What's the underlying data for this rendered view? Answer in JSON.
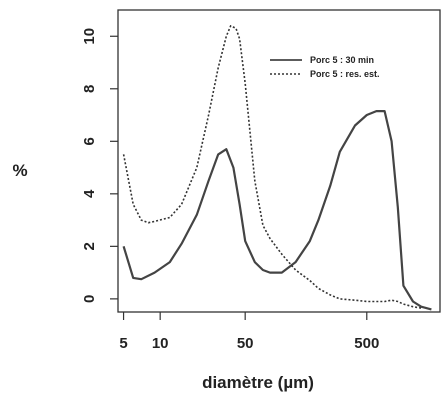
{
  "chart_data": {
    "type": "line",
    "title": "",
    "xlabel": "diamètre  (µm)",
    "ylabel": "%",
    "x_scale": "log",
    "xlim": [
      4.5,
      2000
    ],
    "ylim": [
      -0.5,
      11
    ],
    "x_ticks": [
      5,
      10,
      50,
      500
    ],
    "y_ticks": [
      0,
      2,
      4,
      6,
      8,
      10
    ],
    "legend_position": "top-right",
    "series": [
      {
        "name": "Porc 5 : 30 min",
        "style": "solid",
        "color": "#444444",
        "x": [
          5,
          6,
          7,
          9,
          12,
          15,
          20,
          25,
          30,
          35,
          40,
          45,
          50,
          60,
          70,
          80,
          100,
          130,
          170,
          200,
          250,
          300,
          400,
          500,
          600,
          700,
          800,
          900,
          1000,
          1200,
          1400,
          1700
        ],
        "y": [
          2.0,
          0.8,
          0.75,
          1.0,
          1.4,
          2.1,
          3.2,
          4.5,
          5.5,
          5.7,
          5.0,
          3.6,
          2.2,
          1.4,
          1.1,
          1.0,
          1.0,
          1.4,
          2.2,
          3.0,
          4.3,
          5.6,
          6.6,
          7.0,
          7.15,
          7.15,
          6.0,
          3.5,
          0.5,
          -0.1,
          -0.3,
          -0.4
        ]
      },
      {
        "name": "Porc 5 : res. est.",
        "style": "dotted",
        "color": "#333333",
        "x": [
          5,
          6,
          7,
          8,
          9,
          12,
          15,
          20,
          25,
          30,
          35,
          38,
          42,
          45,
          50,
          60,
          70,
          80,
          100,
          130,
          170,
          200,
          250,
          300,
          400,
          500,
          600,
          700,
          800,
          900,
          1000,
          1200,
          1400
        ],
        "y": [
          5.5,
          3.6,
          3.0,
          2.9,
          2.95,
          3.1,
          3.6,
          5.0,
          7.0,
          8.8,
          10.0,
          10.4,
          10.3,
          9.9,
          8.2,
          4.5,
          2.8,
          2.3,
          1.7,
          1.1,
          0.7,
          0.4,
          0.15,
          0.0,
          -0.05,
          -0.1,
          -0.1,
          -0.1,
          -0.05,
          -0.1,
          -0.2,
          -0.3,
          -0.35
        ]
      }
    ]
  }
}
